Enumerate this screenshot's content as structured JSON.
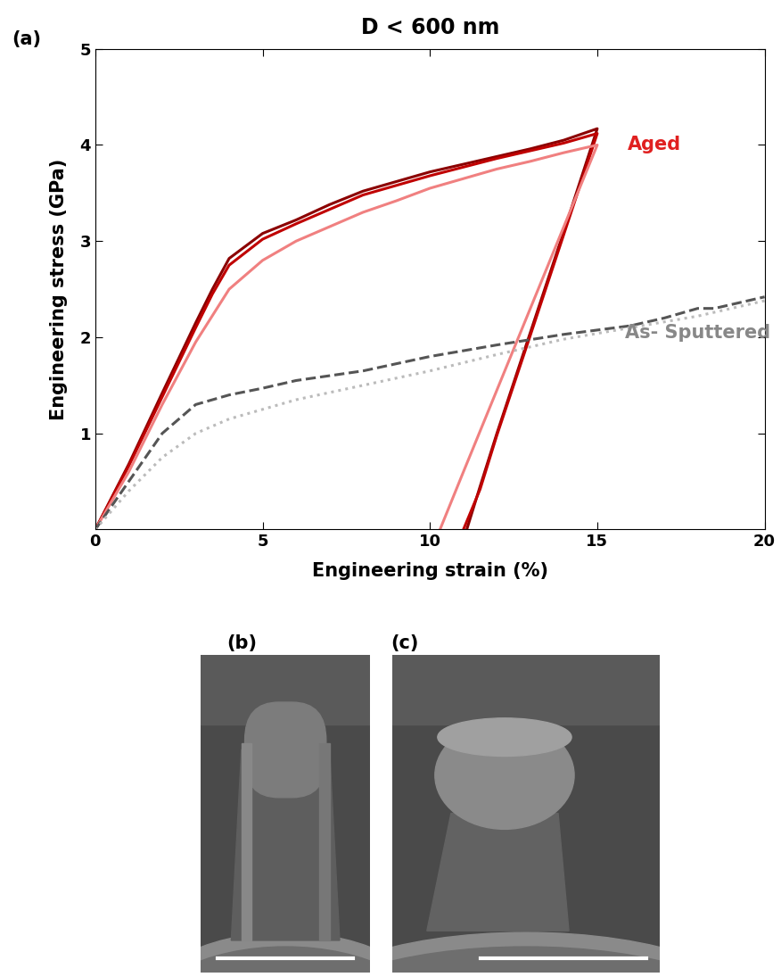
{
  "chart_data": {
    "type": "line",
    "panel_label": "(a)",
    "title": "D < 600 nm",
    "x_label": "Engineering strain (%)",
    "y_label": "Engineering stress (GPa)",
    "xlim": [
      0,
      20
    ],
    "ylim": [
      0,
      5
    ],
    "xticks": [
      0,
      5,
      10,
      15,
      20
    ],
    "yticks": [
      1,
      2,
      3,
      4,
      5
    ],
    "series": [
      {
        "color": "#8b0000",
        "line_style": "solid",
        "x": [
          0,
          1,
          2,
          3,
          3.5,
          4,
          5,
          6,
          7,
          8,
          9,
          10,
          11,
          12,
          13,
          14,
          15,
          14,
          13,
          12,
          11.5,
          11.1
        ],
        "values": [
          0,
          0.68,
          1.42,
          2.15,
          2.5,
          2.82,
          3.08,
          3.22,
          3.38,
          3.52,
          3.62,
          3.72,
          3.8,
          3.88,
          3.96,
          4.05,
          4.17,
          3.1,
          2.05,
          1.0,
          0.45,
          0
        ]
      },
      {
        "color": "#c00000",
        "line_style": "solid",
        "x": [
          0,
          1,
          2,
          3,
          3.5,
          4,
          5,
          6,
          7,
          8,
          9,
          10,
          11,
          12,
          13,
          14,
          15,
          14,
          13,
          12,
          11.5,
          11.0
        ],
        "values": [
          0,
          0.66,
          1.38,
          2.1,
          2.45,
          2.75,
          3.02,
          3.18,
          3.33,
          3.48,
          3.58,
          3.68,
          3.77,
          3.86,
          3.94,
          4.02,
          4.12,
          3.07,
          2.02,
          0.98,
          0.42,
          0
        ]
      },
      {
        "color": "#f08080",
        "line_style": "solid",
        "x": [
          0,
          1,
          2,
          3,
          4,
          5,
          6,
          7,
          8,
          9,
          10,
          11,
          12,
          13,
          14,
          15,
          14,
          13,
          12,
          11,
          10.3
        ],
        "values": [
          0,
          0.6,
          1.3,
          1.95,
          2.5,
          2.8,
          3.0,
          3.15,
          3.3,
          3.42,
          3.55,
          3.65,
          3.75,
          3.83,
          3.92,
          4.0,
          3.15,
          2.3,
          1.45,
          0.6,
          0
        ]
      },
      {
        "color": "#555555",
        "line_style": "dashed",
        "x": [
          0,
          1,
          2,
          3,
          4,
          5,
          6,
          8,
          10,
          12,
          14,
          16,
          17,
          18,
          18.5,
          20
        ],
        "values": [
          0,
          0.5,
          1.0,
          1.3,
          1.4,
          1.47,
          1.55,
          1.65,
          1.8,
          1.92,
          2.03,
          2.12,
          2.2,
          2.3,
          2.3,
          2.42
        ]
      },
      {
        "color": "#bbbbbb",
        "line_style": "dotted",
        "x": [
          0,
          1,
          2,
          3,
          4,
          5,
          6,
          8,
          10,
          12,
          14,
          16,
          18,
          20
        ],
        "values": [
          0,
          0.4,
          0.75,
          1.0,
          1.15,
          1.25,
          1.35,
          1.5,
          1.65,
          1.82,
          1.98,
          2.1,
          2.22,
          2.38
        ]
      }
    ],
    "annotations": [
      {
        "text": "Aged",
        "color": "#e02020"
      },
      {
        "text": "As- Sputtered",
        "color": "#888888"
      }
    ]
  },
  "panels": [
    {
      "label": "(b)"
    },
    {
      "label": "(c)"
    }
  ]
}
